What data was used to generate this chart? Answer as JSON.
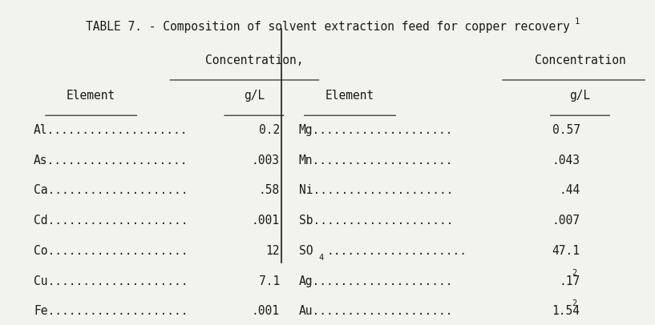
{
  "title": "TABLE 7. - Composition of solvent extraction feed for copper recovery",
  "title_superscript": "1",
  "col1_header1": "Concentration,",
  "col1_header2": "g/L",
  "col2_header1": "Concentration",
  "col2_header2": "g/L",
  "element_header": "Element",
  "left_elements": [
    "Al",
    "As",
    "Ca",
    "Cd",
    "Co",
    "Cu",
    "Fe"
  ],
  "left_values": [
    "0.2",
    ".003",
    ".58",
    ".001",
    "12",
    "7.1",
    ".001"
  ],
  "right_elements": [
    "Mg",
    "Mn",
    "Ni",
    "Sb",
    "SO4",
    "Ag",
    "Au"
  ],
  "right_values": [
    "0.57",
    ".043",
    ".44",
    ".007",
    "47.1",
    ".17",
    "1.54"
  ],
  "right_values_superscript": [
    false,
    false,
    false,
    false,
    false,
    true,
    true
  ],
  "bg_color": "#f2f2ee",
  "text_color": "#1a1a1a",
  "font_family": "monospace",
  "font_size": 10.5,
  "dots": "...................."
}
